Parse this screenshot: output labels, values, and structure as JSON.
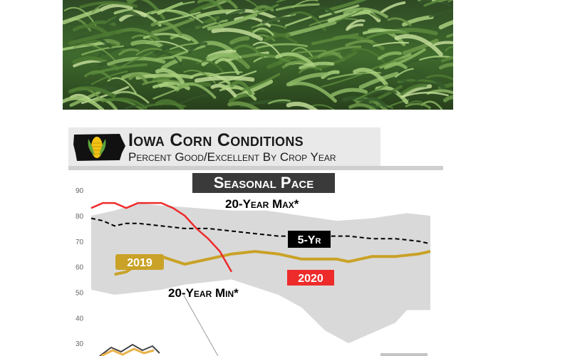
{
  "header": {
    "title": "Iowa Corn Conditions",
    "subtitle": "Percent Good/Excellent By Crop Year"
  },
  "badge": {
    "text": "Seasonal Pace"
  },
  "colors": {
    "band": "#d9d9d9",
    "five_yr": "#000000",
    "y2019": "#c9a227",
    "y2020": "#ee2b2b",
    "header_bg": "#e9e9e9",
    "badge_bg": "#3a3a3a"
  },
  "chart_data": {
    "type": "line",
    "title": "Iowa Corn Conditions",
    "subtitle": "Percent Good/Excellent By Crop Year",
    "ylim": [
      25,
      92
    ],
    "yticks": [
      90,
      80,
      70,
      60,
      50,
      40,
      30
    ],
    "x_week_range": [
      0,
      29
    ],
    "grid": false,
    "series": [
      {
        "name": "20-Year Max*",
        "style": "band-upper",
        "x": [
          0,
          2,
          4,
          6,
          9,
          12,
          15,
          18,
          21,
          24,
          27,
          29
        ],
        "values": [
          80,
          82,
          85,
          84,
          83,
          82,
          82,
          80,
          78,
          79,
          81,
          80
        ]
      },
      {
        "name": "20-Year Min*",
        "style": "band-lower",
        "x": [
          0,
          2,
          4,
          6,
          8,
          10,
          12,
          14,
          16,
          18,
          20,
          22,
          24,
          26,
          27,
          29
        ],
        "values": [
          51,
          49,
          50,
          51,
          53,
          54,
          55,
          52,
          49,
          44,
          35,
          30,
          34,
          38,
          43,
          43
        ]
      },
      {
        "name": "5-Yr",
        "style": "dashed",
        "x": [
          0,
          1,
          2,
          3,
          4,
          6,
          8,
          10,
          12,
          14,
          16,
          18,
          20,
          22,
          24,
          26,
          28,
          29
        ],
        "values": [
          79,
          78,
          76,
          77,
          77,
          76,
          75,
          75,
          74,
          73,
          72,
          72,
          72,
          72,
          71,
          71,
          70,
          69
        ]
      },
      {
        "name": "2019",
        "style": "solid",
        "x": [
          2,
          3,
          4,
          5,
          6,
          8,
          10,
          12,
          14,
          16,
          18,
          20,
          21,
          22,
          24,
          26,
          28,
          29
        ],
        "values": [
          57,
          58,
          61,
          64,
          64,
          61,
          63,
          65,
          66,
          65,
          63,
          63,
          63,
          62,
          64,
          64,
          65,
          66
        ]
      },
      {
        "name": "2020",
        "style": "solid",
        "x": [
          0,
          1,
          2,
          3,
          4,
          5,
          6,
          7,
          8,
          9,
          10,
          11,
          12
        ],
        "values": [
          83,
          85,
          85,
          83,
          85,
          85,
          85,
          83,
          80,
          75,
          71,
          66,
          58
        ]
      }
    ],
    "labels": {
      "max": "20-Year Max*",
      "min": "20-Year Min*",
      "five_yr": "5-Yr",
      "y2019": "2019",
      "y2020": "2020"
    }
  }
}
